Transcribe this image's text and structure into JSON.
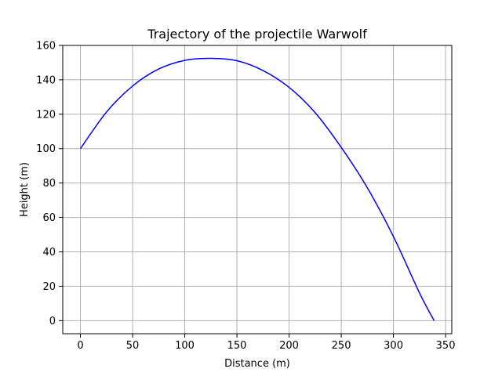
{
  "chart_data": {
    "type": "line",
    "title": "Trajectory of the projectile Warwolf",
    "xlabel": "Distance (m)",
    "ylabel": "Height (m)",
    "xlim": [
      -16.95,
      355.95
    ],
    "ylim": [
      -7.6,
      160
    ],
    "xticks": [
      0,
      50,
      100,
      150,
      200,
      250,
      300,
      350
    ],
    "yticks": [
      0,
      20,
      40,
      60,
      80,
      100,
      120,
      140,
      160
    ],
    "grid": true,
    "colors": {
      "line": "#0000ff",
      "grid": "#b0b0b0",
      "axes": "#000000"
    },
    "series": [
      {
        "x": [
          0,
          25,
          50,
          75,
          100,
          125,
          150,
          175,
          200,
          225,
          250,
          275,
          300,
          325,
          339
        ],
        "y": [
          100,
          121.3,
          136.4,
          146.3,
          151.3,
          152.5,
          151.1,
          145.4,
          135.6,
          120.9,
          100.7,
          77.2,
          48.9,
          16.1,
          0
        ]
      }
    ]
  }
}
